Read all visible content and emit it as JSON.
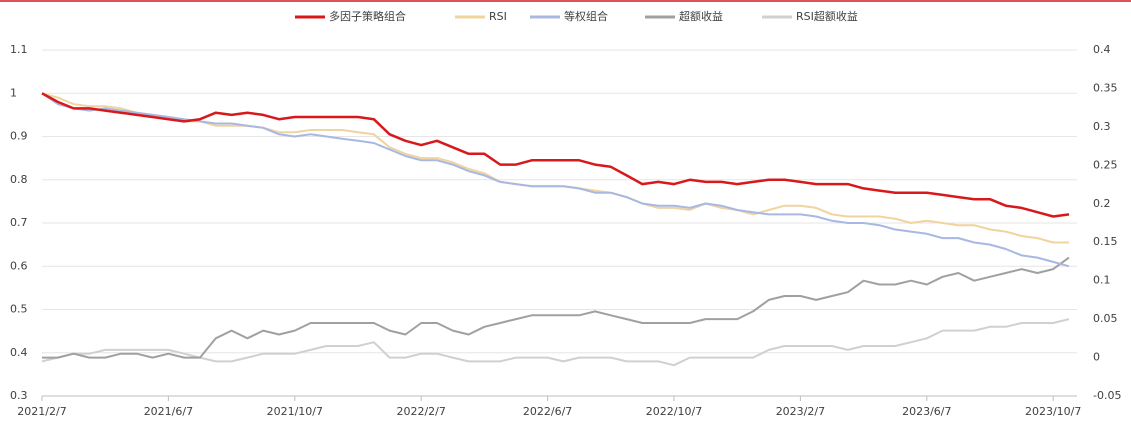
{
  "chart_data": {
    "type": "line",
    "categories": [
      "2021/2/7",
      null,
      null,
      null,
      null,
      null,
      null,
      null,
      "2021/6/7",
      null,
      null,
      null,
      null,
      null,
      null,
      null,
      "2021/10/7",
      null,
      null,
      null,
      null,
      null,
      null,
      null,
      "2022/2/7",
      null,
      null,
      null,
      null,
      null,
      null,
      null,
      "2022/6/7",
      null,
      null,
      null,
      null,
      null,
      null,
      null,
      "2022/10/7",
      null,
      null,
      null,
      null,
      null,
      null,
      null,
      "2023/2/7",
      null,
      null,
      null,
      null,
      null,
      null,
      null,
      "2023/6/7",
      null,
      null,
      null,
      null,
      null,
      null,
      null,
      "2023/10/7",
      null
    ],
    "ylim": [
      0.3,
      1.1
    ],
    "yticks": [
      0.3,
      0.4,
      0.5,
      0.6,
      0.7,
      0.8,
      0.9,
      1,
      1.1
    ],
    "y2lim": [
      -0.05,
      0.4
    ],
    "y2ticks": [
      -0.05,
      0,
      0.05,
      0.1,
      0.15,
      0.2,
      0.25,
      0.3,
      0.35,
      0.4
    ],
    "grid": true,
    "series": [
      {
        "name": "多因子策略组合",
        "color": "#d7191c",
        "values": [
          1.0,
          0.98,
          0.965,
          0.965,
          0.96,
          0.955,
          0.95,
          0.945,
          0.94,
          0.935,
          0.94,
          0.955,
          0.95,
          0.955,
          0.95,
          0.94,
          0.945,
          0.945,
          0.945,
          0.945,
          0.945,
          0.94,
          0.905,
          0.89,
          0.88,
          0.89,
          0.875,
          0.86,
          0.86,
          0.835,
          0.835,
          0.845,
          0.845,
          0.845,
          0.845,
          0.835,
          0.83,
          0.81,
          0.79,
          0.795,
          0.79,
          0.8,
          0.795,
          0.795,
          0.79,
          0.795,
          0.8,
          0.8,
          0.795,
          0.79,
          0.79,
          0.79,
          0.78,
          0.775,
          0.77,
          0.77,
          0.77,
          0.765,
          0.76,
          0.755,
          0.755,
          0.74,
          0.735,
          0.725,
          0.715,
          0.72
        ]
      },
      {
        "name": "RSI",
        "color": "#f0d4a0",
        "values": [
          1.0,
          0.99,
          0.975,
          0.97,
          0.97,
          0.965,
          0.955,
          0.95,
          0.945,
          0.935,
          0.935,
          0.925,
          0.925,
          0.925,
          0.92,
          0.91,
          0.91,
          0.915,
          0.915,
          0.915,
          0.91,
          0.905,
          0.875,
          0.86,
          0.85,
          0.85,
          0.84,
          0.825,
          0.815,
          0.795,
          0.79,
          0.785,
          0.785,
          0.785,
          0.78,
          0.775,
          0.77,
          0.76,
          0.745,
          0.735,
          0.735,
          0.73,
          0.745,
          0.735,
          0.73,
          0.72,
          0.73,
          0.74,
          0.74,
          0.735,
          0.72,
          0.715,
          0.715,
          0.715,
          0.71,
          0.7,
          0.705,
          0.7,
          0.695,
          0.695,
          0.685,
          0.68,
          0.67,
          0.665,
          0.655,
          0.655
        ]
      },
      {
        "name": "等权组合",
        "color": "#a8b8e2",
        "values": [
          1.0,
          0.975,
          0.965,
          0.96,
          0.965,
          0.96,
          0.955,
          0.95,
          0.945,
          0.94,
          0.935,
          0.93,
          0.93,
          0.925,
          0.92,
          0.905,
          0.9,
          0.905,
          0.9,
          0.895,
          0.89,
          0.885,
          0.87,
          0.855,
          0.845,
          0.845,
          0.835,
          0.82,
          0.81,
          0.795,
          0.79,
          0.785,
          0.785,
          0.785,
          0.78,
          0.77,
          0.77,
          0.76,
          0.745,
          0.74,
          0.74,
          0.735,
          0.745,
          0.74,
          0.73,
          0.725,
          0.72,
          0.72,
          0.72,
          0.715,
          0.705,
          0.7,
          0.7,
          0.695,
          0.685,
          0.68,
          0.675,
          0.665,
          0.665,
          0.655,
          0.65,
          0.64,
          0.625,
          0.62,
          0.61,
          0.6
        ]
      },
      {
        "name": "超额收益",
        "color": "#a0a0a0",
        "axis": "y2",
        "values": [
          0.0,
          0.0,
          0.005,
          0.0,
          0.0,
          0.005,
          0.005,
          0.0,
          0.005,
          0.0,
          0.0,
          0.025,
          0.035,
          0.025,
          0.035,
          0.03,
          0.035,
          0.045,
          0.045,
          0.045,
          0.045,
          0.045,
          0.035,
          0.03,
          0.045,
          0.045,
          0.035,
          0.03,
          0.04,
          0.045,
          0.05,
          0.055,
          0.055,
          0.055,
          0.055,
          0.06,
          0.055,
          0.05,
          0.045,
          0.045,
          0.045,
          0.045,
          0.05,
          0.05,
          0.05,
          0.06,
          0.075,
          0.08,
          0.08,
          0.075,
          0.08,
          0.085,
          0.1,
          0.095,
          0.095,
          0.1,
          0.095,
          0.105,
          0.11,
          0.1,
          0.105,
          0.11,
          0.115,
          0.11,
          0.115,
          0.13
        ]
      },
      {
        "name": "RSI超额收益",
        "color": "#d0d0d0",
        "axis": "y2",
        "values": [
          -0.005,
          0.0,
          0.005,
          0.005,
          0.01,
          0.01,
          0.01,
          0.01,
          0.01,
          0.005,
          0.0,
          -0.005,
          -0.005,
          0.0,
          0.005,
          0.005,
          0.005,
          0.01,
          0.015,
          0.015,
          0.015,
          0.02,
          0.0,
          0.0,
          0.005,
          0.005,
          0.0,
          -0.005,
          -0.005,
          -0.005,
          0.0,
          0.0,
          0.0,
          -0.005,
          0.0,
          0.0,
          0.0,
          -0.005,
          -0.005,
          -0.005,
          -0.01,
          0.0,
          0.0,
          0.0,
          0.0,
          0.0,
          0.01,
          0.015,
          0.015,
          0.015,
          0.015,
          0.01,
          0.015,
          0.015,
          0.015,
          0.02,
          0.025,
          0.035,
          0.035,
          0.035,
          0.04,
          0.04,
          0.045,
          0.045,
          0.045,
          0.05
        ]
      }
    ]
  }
}
